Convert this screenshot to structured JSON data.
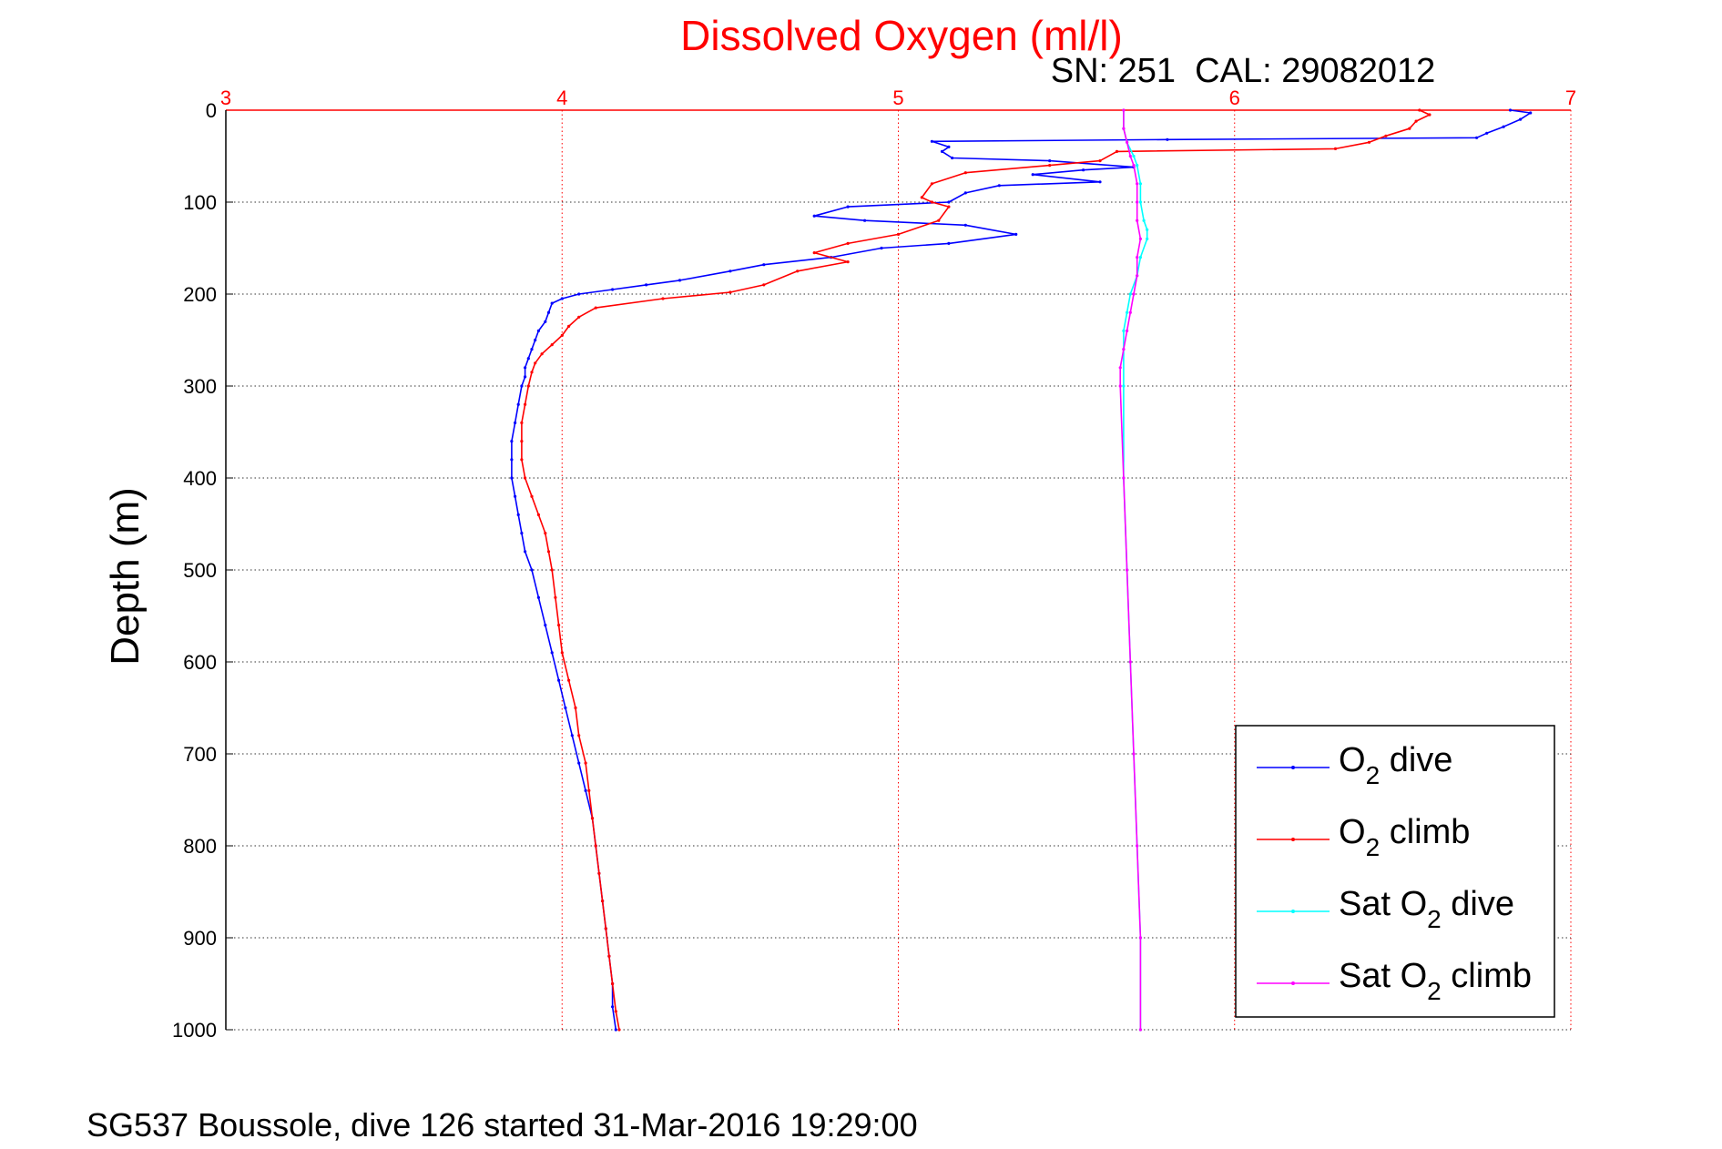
{
  "chart_data": {
    "type": "line",
    "title": "Dissolved Oxygen (ml/l)",
    "subtitle": "SN: 251  CAL: 29082012",
    "ylabel": "Depth (m)",
    "xlim": [
      3,
      7
    ],
    "ylim": [
      0,
      1000
    ],
    "y_reversed": true,
    "x_axis_position": "top",
    "x_ticks": [
      "3",
      "4",
      "5",
      "6",
      "7"
    ],
    "y_ticks": [
      "0",
      "100",
      "200",
      "300",
      "400",
      "500",
      "600",
      "700",
      "800",
      "900",
      "1000"
    ],
    "grid": true,
    "legend_position": "lower-right",
    "footer": "SG537 Boussole, dive 126 started 31-Mar-2016 19:29:00",
    "series": [
      {
        "name": "O2 dive",
        "legend_main": "O",
        "legend_sub": "2",
        "legend_rest": " dive",
        "color": "#0000ff",
        "points": [
          [
            6.82,
            0
          ],
          [
            6.88,
            3
          ],
          [
            6.85,
            10
          ],
          [
            6.8,
            18
          ],
          [
            6.75,
            25
          ],
          [
            6.72,
            30
          ],
          [
            5.8,
            32
          ],
          [
            5.1,
            34
          ],
          [
            5.15,
            40
          ],
          [
            5.13,
            45
          ],
          [
            5.16,
            52
          ],
          [
            5.45,
            55
          ],
          [
            5.7,
            62
          ],
          [
            5.55,
            65
          ],
          [
            5.4,
            70
          ],
          [
            5.6,
            78
          ],
          [
            5.3,
            82
          ],
          [
            5.2,
            90
          ],
          [
            5.15,
            100
          ],
          [
            4.85,
            105
          ],
          [
            4.75,
            115
          ],
          [
            4.9,
            120
          ],
          [
            5.2,
            125
          ],
          [
            5.35,
            135
          ],
          [
            5.15,
            145
          ],
          [
            4.95,
            150
          ],
          [
            4.8,
            160
          ],
          [
            4.6,
            168
          ],
          [
            4.5,
            175
          ],
          [
            4.35,
            185
          ],
          [
            4.25,
            190
          ],
          [
            4.15,
            195
          ],
          [
            4.05,
            200
          ],
          [
            4.0,
            205
          ],
          [
            3.97,
            210
          ],
          [
            3.96,
            220
          ],
          [
            3.95,
            230
          ],
          [
            3.93,
            240
          ],
          [
            3.92,
            250
          ],
          [
            3.91,
            260
          ],
          [
            3.9,
            270
          ],
          [
            3.89,
            280
          ],
          [
            3.89,
            290
          ],
          [
            3.88,
            300
          ],
          [
            3.87,
            320
          ],
          [
            3.86,
            340
          ],
          [
            3.85,
            360
          ],
          [
            3.85,
            380
          ],
          [
            3.85,
            400
          ],
          [
            3.86,
            420
          ],
          [
            3.87,
            440
          ],
          [
            3.88,
            460
          ],
          [
            3.89,
            480
          ],
          [
            3.91,
            500
          ],
          [
            3.93,
            530
          ],
          [
            3.95,
            560
          ],
          [
            3.97,
            590
          ],
          [
            3.99,
            620
          ],
          [
            4.01,
            650
          ],
          [
            4.03,
            680
          ],
          [
            4.05,
            710
          ],
          [
            4.07,
            740
          ],
          [
            4.09,
            770
          ],
          [
            4.1,
            800
          ],
          [
            4.11,
            830
          ],
          [
            4.12,
            860
          ],
          [
            4.13,
            890
          ],
          [
            4.14,
            920
          ],
          [
            4.15,
            950
          ],
          [
            4.15,
            975
          ],
          [
            4.16,
            1000
          ]
        ]
      },
      {
        "name": "O2 climb",
        "legend_main": "O",
        "legend_sub": "2",
        "legend_rest": " climb",
        "color": "#ff0000",
        "points": [
          [
            6.55,
            0
          ],
          [
            6.58,
            5
          ],
          [
            6.54,
            12
          ],
          [
            6.52,
            20
          ],
          [
            6.45,
            28
          ],
          [
            6.4,
            35
          ],
          [
            6.3,
            42
          ],
          [
            5.65,
            45
          ],
          [
            5.6,
            55
          ],
          [
            5.45,
            60
          ],
          [
            5.2,
            68
          ],
          [
            5.1,
            80
          ],
          [
            5.07,
            95
          ],
          [
            5.1,
            100
          ],
          [
            5.15,
            105
          ],
          [
            5.12,
            120
          ],
          [
            5.0,
            135
          ],
          [
            4.85,
            145
          ],
          [
            4.75,
            155
          ],
          [
            4.85,
            165
          ],
          [
            4.7,
            175
          ],
          [
            4.6,
            190
          ],
          [
            4.5,
            198
          ],
          [
            4.3,
            205
          ],
          [
            4.1,
            215
          ],
          [
            4.05,
            225
          ],
          [
            4.02,
            235
          ],
          [
            4.0,
            245
          ],
          [
            3.97,
            255
          ],
          [
            3.94,
            265
          ],
          [
            3.92,
            275
          ],
          [
            3.91,
            285
          ],
          [
            3.9,
            300
          ],
          [
            3.89,
            320
          ],
          [
            3.88,
            340
          ],
          [
            3.88,
            360
          ],
          [
            3.88,
            380
          ],
          [
            3.89,
            400
          ],
          [
            3.91,
            420
          ],
          [
            3.93,
            440
          ],
          [
            3.95,
            460
          ],
          [
            3.96,
            480
          ],
          [
            3.97,
            500
          ],
          [
            3.98,
            530
          ],
          [
            3.99,
            560
          ],
          [
            4.0,
            590
          ],
          [
            4.02,
            620
          ],
          [
            4.04,
            650
          ],
          [
            4.05,
            680
          ],
          [
            4.07,
            710
          ],
          [
            4.08,
            740
          ],
          [
            4.09,
            770
          ],
          [
            4.1,
            800
          ],
          [
            4.11,
            830
          ],
          [
            4.12,
            860
          ],
          [
            4.13,
            890
          ],
          [
            4.14,
            920
          ],
          [
            4.15,
            950
          ],
          [
            4.16,
            980
          ],
          [
            4.17,
            1000
          ]
        ]
      },
      {
        "name": "Sat O2 dive",
        "legend_main": "Sat O",
        "legend_sub": "2",
        "legend_rest": " dive",
        "color": "#00ffff",
        "points": [
          [
            5.67,
            0
          ],
          [
            5.67,
            20
          ],
          [
            5.68,
            35
          ],
          [
            5.7,
            50
          ],
          [
            5.71,
            60
          ],
          [
            5.72,
            80
          ],
          [
            5.72,
            100
          ],
          [
            5.73,
            120
          ],
          [
            5.74,
            130
          ],
          [
            5.74,
            140
          ],
          [
            5.72,
            160
          ],
          [
            5.71,
            180
          ],
          [
            5.69,
            200
          ],
          [
            5.68,
            220
          ],
          [
            5.67,
            240
          ],
          [
            5.67,
            260
          ],
          [
            5.67,
            300
          ],
          [
            5.67,
            400
          ],
          [
            5.68,
            500
          ],
          [
            5.69,
            600
          ],
          [
            5.7,
            700
          ],
          [
            5.71,
            800
          ],
          [
            5.72,
            900
          ],
          [
            5.72,
            1000
          ]
        ]
      },
      {
        "name": "Sat O2 climb",
        "legend_main": "Sat O",
        "legend_sub": "2",
        "legend_rest": " climb",
        "color": "#ff00ff",
        "points": [
          [
            5.67,
            0
          ],
          [
            5.67,
            20
          ],
          [
            5.68,
            35
          ],
          [
            5.69,
            50
          ],
          [
            5.7,
            60
          ],
          [
            5.71,
            80
          ],
          [
            5.71,
            100
          ],
          [
            5.71,
            120
          ],
          [
            5.72,
            140
          ],
          [
            5.71,
            160
          ],
          [
            5.71,
            180
          ],
          [
            5.7,
            200
          ],
          [
            5.69,
            220
          ],
          [
            5.68,
            240
          ],
          [
            5.67,
            260
          ],
          [
            5.66,
            280
          ],
          [
            5.66,
            300
          ],
          [
            5.67,
            400
          ],
          [
            5.68,
            500
          ],
          [
            5.69,
            600
          ],
          [
            5.7,
            700
          ],
          [
            5.71,
            800
          ],
          [
            5.72,
            900
          ],
          [
            5.72,
            1000
          ]
        ]
      }
    ]
  }
}
